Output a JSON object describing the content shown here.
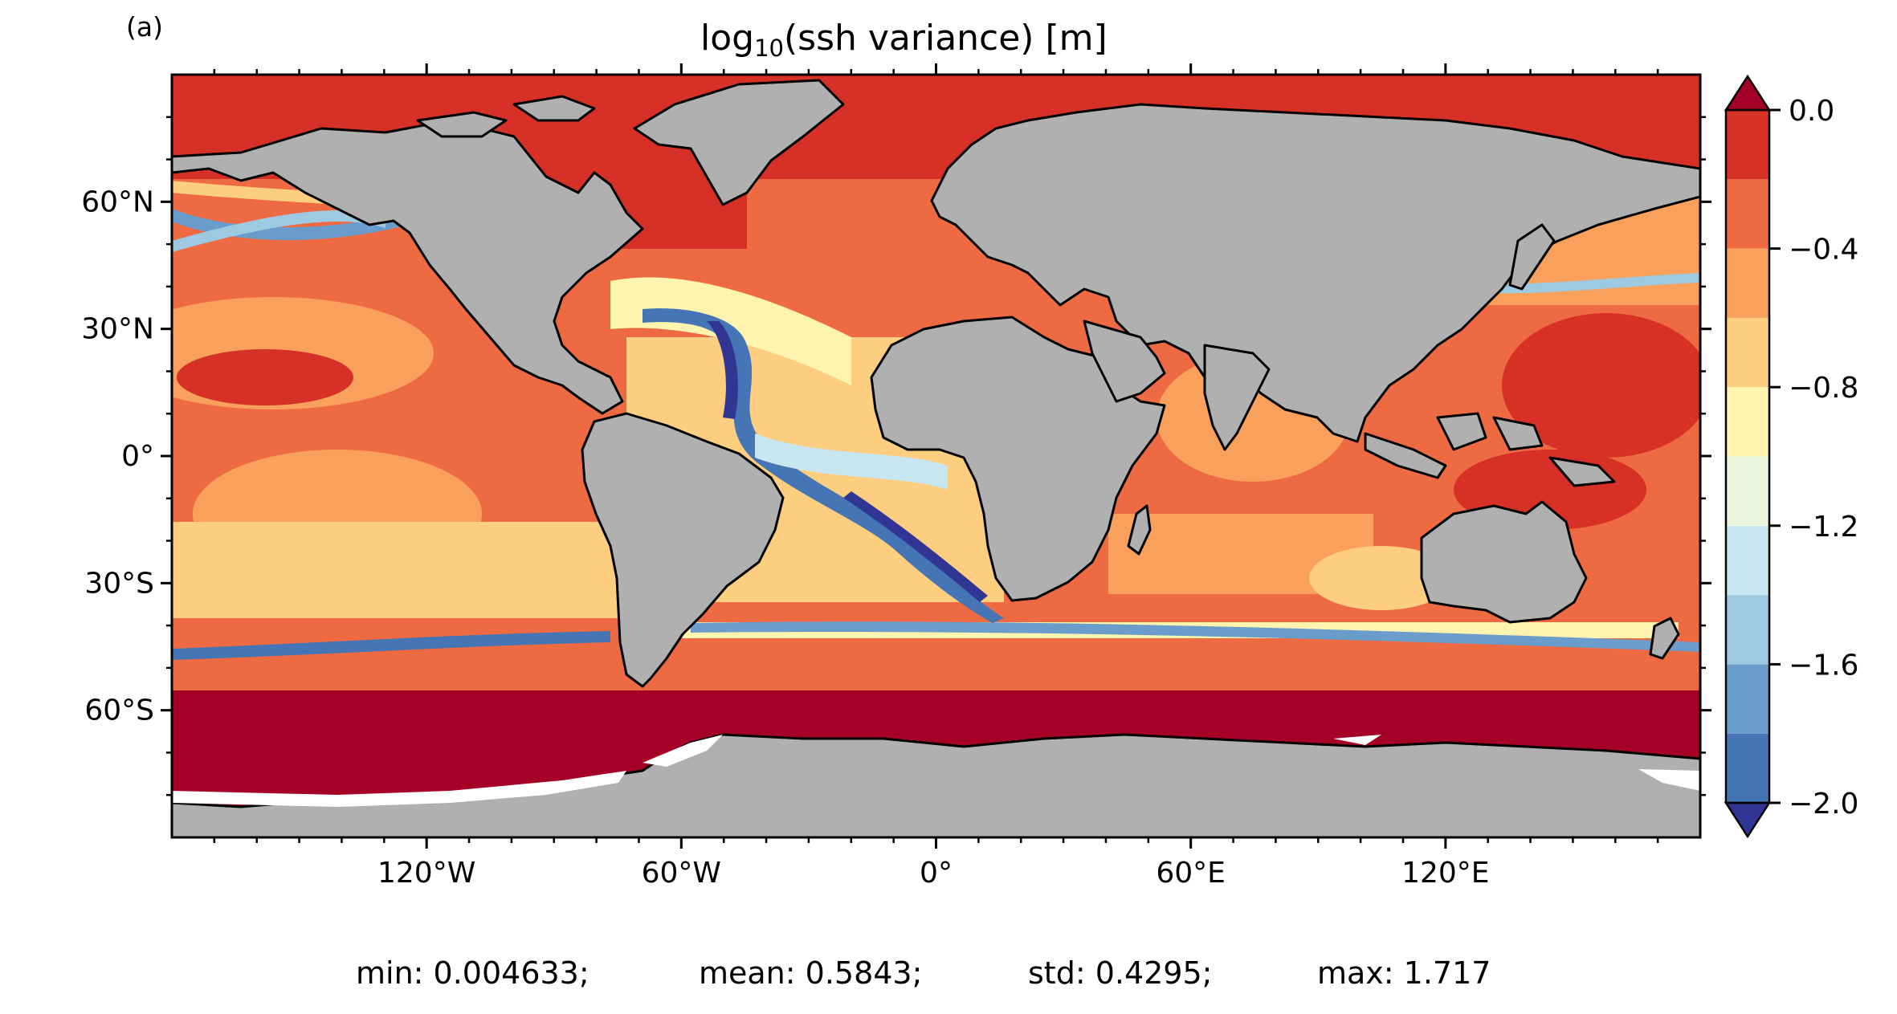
{
  "panel_label": "(a)",
  "title": {
    "prefix": "log",
    "subscript": "10",
    "suffix": "(ssh variance) [m]"
  },
  "map": {
    "projection": "plate-carree",
    "lon_range": [
      -180,
      180
    ],
    "lat_range": [
      -90,
      90
    ],
    "land_color": "#b0b0b0",
    "coastline_color": "#000000",
    "missing_color": "#ffffff",
    "lat_ticks": [
      {
        "value": 60,
        "label": "60°N"
      },
      {
        "value": 30,
        "label": "30°N"
      },
      {
        "value": 0,
        "label": "0°"
      },
      {
        "value": -30,
        "label": "30°S"
      },
      {
        "value": -60,
        "label": "60°S"
      }
    ],
    "lon_ticks": [
      {
        "value": -120,
        "label": "120°W"
      },
      {
        "value": -60,
        "label": "60°W"
      },
      {
        "value": 0,
        "label": "0°"
      },
      {
        "value": 60,
        "label": "60°E"
      },
      {
        "value": 120,
        "label": "120°E"
      }
    ]
  },
  "colorbar": {
    "range": [
      -2.0,
      0.0
    ],
    "extend": "both",
    "levels": [
      -2.0,
      -1.8,
      -1.6,
      -1.4,
      -1.2,
      -1.0,
      -0.8,
      -0.6,
      -0.4,
      -0.2,
      0.0
    ],
    "colors": [
      "#4575b4",
      "#6a9dcb",
      "#9ecae1",
      "#c8e6f0",
      "#ebf5dd",
      "#fff3b0",
      "#fdcd80",
      "#f9a05c",
      "#ee6a43",
      "#d73027"
    ],
    "under_color": "#313695",
    "over_color": "#a50026",
    "tick_labels": [
      {
        "value": 0.0,
        "label": "0.0"
      },
      {
        "value": -0.4,
        "label": "−0.4"
      },
      {
        "value": -0.8,
        "label": "−0.8"
      },
      {
        "value": -1.2,
        "label": "−1.2"
      },
      {
        "value": -1.6,
        "label": "−1.6"
      },
      {
        "value": -2.0,
        "label": "−2.0"
      }
    ]
  },
  "stats": {
    "min": "min: 0.004633;",
    "mean": "mean: 0.5843;",
    "std": "std: 0.4295;",
    "max": "max: 1.717"
  }
}
